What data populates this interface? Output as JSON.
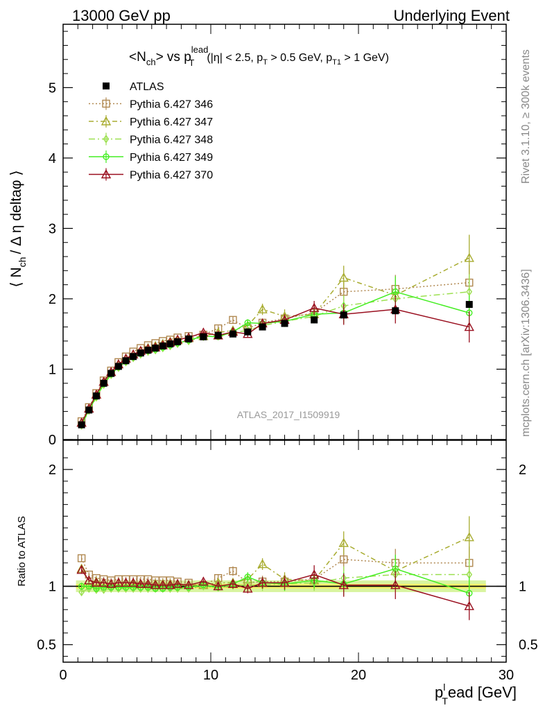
{
  "header": {
    "left": "13000 GeV pp",
    "right": "Underlying Event"
  },
  "side_labels": {
    "rivet": "Rivet 3.1.10, ≥ 300k events",
    "mcplots": "mcplots.cern.ch [arXiv:1306.3436]"
  },
  "watermark": "ATLAS_2017_I1509919",
  "chart_data": [
    {
      "type": "scatter",
      "title_parts": {
        "main": "<N",
        "main_sub": "ch",
        "mid": "> vs p",
        "mid_sup": "lead",
        "mid_sub": "T",
        "cuts_a": "(|η| < 2.5, p",
        "cuts_a_sub": "T",
        "cuts_b": " > 0.5 GeV, p",
        "cuts_b_sub": "T1",
        "cuts_c": " > 1 GeV)"
      },
      "ylabel_parts": {
        "a": "⟨ N",
        "a_sub": "ch",
        "b": "/ Δ η deltaφ ⟩"
      },
      "xlim": [
        0,
        30
      ],
      "ylim": [
        0,
        5.9
      ],
      "yticks": [
        0,
        1,
        2,
        3,
        4,
        5
      ],
      "y_tick_labels": [
        "0",
        "1",
        "2",
        "3",
        "4",
        "5"
      ],
      "legend_position": "top-left",
      "x": [
        1.25,
        1.75,
        2.25,
        2.75,
        3.25,
        3.75,
        4.25,
        4.75,
        5.25,
        5.75,
        6.25,
        6.75,
        7.25,
        7.75,
        8.5,
        9.5,
        10.5,
        11.5,
        12.5,
        13.5,
        15.0,
        17.0,
        19.0,
        22.5,
        27.5
      ],
      "series": [
        {
          "name": "ATLAS",
          "color": "#000000",
          "marker": "filled-square",
          "values": [
            0.21,
            0.42,
            0.62,
            0.8,
            0.94,
            1.04,
            1.12,
            1.18,
            1.23,
            1.27,
            1.3,
            1.33,
            1.36,
            1.39,
            1.43,
            1.46,
            1.48,
            1.5,
            1.53,
            1.6,
            1.65,
            1.7,
            1.77,
            1.83,
            1.92
          ]
        },
        {
          "name": "Pythia 6.427 346",
          "color": "#b08850",
          "marker": "open-square",
          "dash": "2,3",
          "values": [
            0.26,
            0.46,
            0.66,
            0.84,
            0.98,
            1.1,
            1.18,
            1.25,
            1.3,
            1.34,
            1.37,
            1.4,
            1.42,
            1.45,
            1.47,
            1.49,
            1.58,
            1.7,
            1.58,
            1.66,
            1.72,
            1.8,
            2.1,
            2.14,
            2.23
          ],
          "errors": [
            0.02,
            0.02,
            0.02,
            0.02,
            0.02,
            0.02,
            0.02,
            0.02,
            0.02,
            0.02,
            0.02,
            0.02,
            0.02,
            0.02,
            0.02,
            0.03,
            0.04,
            0.05,
            0.05,
            0.06,
            0.08,
            0.1,
            0.15,
            0.2,
            0.25
          ]
        },
        {
          "name": "Pythia 6.427 347",
          "color": "#a8ac30",
          "marker": "open-triangle",
          "dash": "7,4,2,4",
          "values": [
            0.24,
            0.44,
            0.64,
            0.82,
            0.96,
            1.07,
            1.15,
            1.21,
            1.26,
            1.3,
            1.33,
            1.36,
            1.39,
            1.41,
            1.44,
            1.47,
            1.52,
            1.55,
            1.62,
            1.85,
            1.75,
            1.78,
            2.3,
            2.05,
            2.58
          ],
          "errors": [
            0.02,
            0.02,
            0.02,
            0.02,
            0.02,
            0.02,
            0.02,
            0.02,
            0.02,
            0.02,
            0.02,
            0.02,
            0.02,
            0.02,
            0.02,
            0.03,
            0.04,
            0.05,
            0.06,
            0.08,
            0.1,
            0.12,
            0.17,
            0.22,
            0.33
          ]
        },
        {
          "name": "Pythia 6.427 348",
          "color": "#9ce050",
          "marker": "open-diamond",
          "dash": "9,4,2,4",
          "values": [
            0.2,
            0.41,
            0.6,
            0.78,
            0.92,
            1.02,
            1.1,
            1.16,
            1.21,
            1.25,
            1.27,
            1.3,
            1.33,
            1.36,
            1.4,
            1.46,
            1.47,
            1.52,
            1.55,
            1.62,
            1.68,
            1.75,
            1.9,
            2.0,
            2.1
          ],
          "errors": [
            0.02,
            0.02,
            0.02,
            0.02,
            0.02,
            0.02,
            0.02,
            0.02,
            0.02,
            0.02,
            0.02,
            0.02,
            0.02,
            0.02,
            0.02,
            0.03,
            0.04,
            0.05,
            0.05,
            0.06,
            0.08,
            0.1,
            0.15,
            0.2,
            0.25
          ]
        },
        {
          "name": "Pythia 6.427 349",
          "color": "#44ee22",
          "marker": "open-circle",
          "dash": "",
          "values": [
            0.21,
            0.42,
            0.61,
            0.79,
            0.93,
            1.03,
            1.11,
            1.17,
            1.22,
            1.26,
            1.28,
            1.31,
            1.34,
            1.37,
            1.41,
            1.47,
            1.46,
            1.53,
            1.66,
            1.65,
            1.68,
            1.78,
            1.8,
            2.1,
            1.8
          ],
          "errors": [
            0.02,
            0.02,
            0.02,
            0.02,
            0.02,
            0.02,
            0.02,
            0.02,
            0.02,
            0.02,
            0.02,
            0.02,
            0.02,
            0.02,
            0.02,
            0.03,
            0.04,
            0.05,
            0.05,
            0.06,
            0.08,
            0.1,
            0.15,
            0.22,
            0.25
          ]
        },
        {
          "name": "Pythia 6.427 370",
          "color": "#990e1e",
          "marker": "open-triangle",
          "dash": "",
          "values": [
            0.24,
            0.44,
            0.64,
            0.82,
            0.96,
            1.07,
            1.15,
            1.21,
            1.26,
            1.29,
            1.31,
            1.34,
            1.38,
            1.42,
            1.45,
            1.52,
            1.48,
            1.53,
            1.5,
            1.65,
            1.7,
            1.87,
            1.78,
            1.85,
            1.6
          ],
          "errors": [
            0.02,
            0.02,
            0.02,
            0.02,
            0.02,
            0.02,
            0.02,
            0.02,
            0.02,
            0.02,
            0.02,
            0.02,
            0.02,
            0.02,
            0.02,
            0.03,
            0.04,
            0.05,
            0.05,
            0.06,
            0.08,
            0.1,
            0.15,
            0.2,
            0.22
          ]
        }
      ]
    },
    {
      "type": "scatter",
      "ylabel": "Ratio to ATLAS",
      "xlabel_parts": {
        "a": "p",
        "a_sup": "l",
        "a_sub": "T",
        "b": "ead [GeV]"
      },
      "xlim": [
        0,
        30
      ],
      "ylim": [
        0.35,
        2.25
      ],
      "xticks": [
        0,
        10,
        20,
        30
      ],
      "x_tick_labels": [
        "0",
        "10",
        "20",
        "30"
      ],
      "yticks": [
        0.5,
        1,
        2
      ],
      "y_tick_labels": [
        "0.5",
        "1",
        "2"
      ],
      "band": {
        "inner": 0.02,
        "outer": 0.05,
        "inner_color": "#f5f26a",
        "outer_color": "#d8f4a0"
      },
      "x": [
        1.25,
        1.75,
        2.25,
        2.75,
        3.25,
        3.75,
        4.25,
        4.75,
        5.25,
        5.75,
        6.25,
        6.75,
        7.25,
        7.75,
        8.5,
        9.5,
        10.5,
        11.5,
        12.5,
        13.5,
        15.0,
        17.0,
        19.0,
        22.5,
        27.5
      ],
      "series": [
        {
          "name": "Pythia 6.427 346",
          "values": [
            1.24,
            1.1,
            1.07,
            1.06,
            1.05,
            1.06,
            1.06,
            1.06,
            1.06,
            1.06,
            1.05,
            1.05,
            1.05,
            1.04,
            1.03,
            1.01,
            1.07,
            1.13,
            1.03,
            1.04,
            1.04,
            1.06,
            1.23,
            1.2,
            1.2
          ],
          "errors": [
            0.03,
            0.02,
            0.02,
            0.02,
            0.02,
            0.02,
            0.02,
            0.02,
            0.02,
            0.02,
            0.02,
            0.02,
            0.02,
            0.02,
            0.02,
            0.02,
            0.03,
            0.04,
            0.04,
            0.05,
            0.06,
            0.07,
            0.1,
            0.12,
            0.14
          ]
        },
        {
          "name": "Pythia 6.427 347",
          "values": [
            1.15,
            1.05,
            1.04,
            1.03,
            1.02,
            1.03,
            1.03,
            1.02,
            1.02,
            1.02,
            1.02,
            1.02,
            1.02,
            1.01,
            1.01,
            1.01,
            1.03,
            1.03,
            1.06,
            1.19,
            1.06,
            1.05,
            1.37,
            1.13,
            1.42
          ],
          "errors": [
            0.03,
            0.02,
            0.02,
            0.02,
            0.02,
            0.02,
            0.02,
            0.02,
            0.02,
            0.02,
            0.02,
            0.02,
            0.02,
            0.02,
            0.02,
            0.02,
            0.03,
            0.04,
            0.04,
            0.05,
            0.06,
            0.08,
            0.1,
            0.12,
            0.18
          ]
        },
        {
          "name": "Pythia 6.427 348",
          "values": [
            0.95,
            0.98,
            0.97,
            0.97,
            0.98,
            0.98,
            0.98,
            0.98,
            0.98,
            0.98,
            0.98,
            0.98,
            0.98,
            0.98,
            0.98,
            1.0,
            0.99,
            1.01,
            1.01,
            1.01,
            1.02,
            1.03,
            1.07,
            1.1,
            1.1
          ],
          "errors": [
            0.03,
            0.02,
            0.02,
            0.02,
            0.02,
            0.02,
            0.02,
            0.02,
            0.02,
            0.02,
            0.02,
            0.02,
            0.02,
            0.02,
            0.02,
            0.02,
            0.03,
            0.04,
            0.04,
            0.05,
            0.06,
            0.07,
            0.1,
            0.12,
            0.14
          ]
        },
        {
          "name": "Pythia 6.427 349",
          "values": [
            1.0,
            1.0,
            0.98,
            0.99,
            0.99,
            0.99,
            0.99,
            0.99,
            0.99,
            0.99,
            0.98,
            0.98,
            0.99,
            0.99,
            0.99,
            1.01,
            0.99,
            1.02,
            1.08,
            1.03,
            1.02,
            1.05,
            1.02,
            1.15,
            0.94
          ],
          "errors": [
            0.03,
            0.02,
            0.02,
            0.02,
            0.02,
            0.02,
            0.02,
            0.02,
            0.02,
            0.02,
            0.02,
            0.02,
            0.02,
            0.02,
            0.02,
            0.02,
            0.03,
            0.04,
            0.04,
            0.05,
            0.06,
            0.07,
            0.1,
            0.12,
            0.14
          ]
        },
        {
          "name": "Pythia 6.427 370",
          "values": [
            1.14,
            1.05,
            1.03,
            1.03,
            1.02,
            1.03,
            1.03,
            1.03,
            1.02,
            1.02,
            1.01,
            1.01,
            1.01,
            1.02,
            1.01,
            1.04,
            1.0,
            1.02,
            0.98,
            1.03,
            1.03,
            1.1,
            1.01,
            1.01,
            0.83
          ],
          "errors": [
            0.03,
            0.02,
            0.02,
            0.02,
            0.02,
            0.02,
            0.02,
            0.02,
            0.02,
            0.02,
            0.02,
            0.02,
            0.02,
            0.02,
            0.02,
            0.02,
            0.03,
            0.04,
            0.04,
            0.05,
            0.06,
            0.08,
            0.1,
            0.12,
            0.12
          ]
        }
      ]
    }
  ]
}
